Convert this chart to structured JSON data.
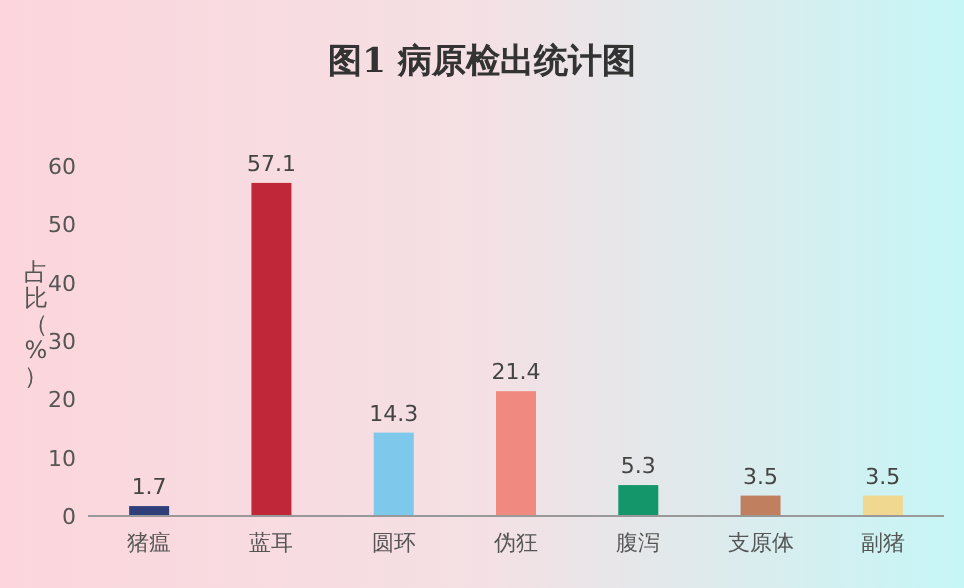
{
  "chart_data": {
    "type": "bar",
    "title": "图1 病原检出统计图",
    "ylabel": "占比（%）",
    "categories": [
      "猪瘟",
      "蓝耳",
      "圆环",
      "伪狂",
      "腹泻",
      "支原体",
      "副猪"
    ],
    "values": [
      1.7,
      57.1,
      14.3,
      21.4,
      5.3,
      3.5,
      3.5
    ],
    "colors": [
      "#2e3f7a",
      "#c0283a",
      "#7ec8ec",
      "#f08a80",
      "#14966a",
      "#c08060",
      "#f0d890"
    ],
    "ylim": [
      0,
      60
    ],
    "yticks": [
      0,
      10,
      20,
      30,
      40,
      50,
      60
    ],
    "data_labels": true
  }
}
